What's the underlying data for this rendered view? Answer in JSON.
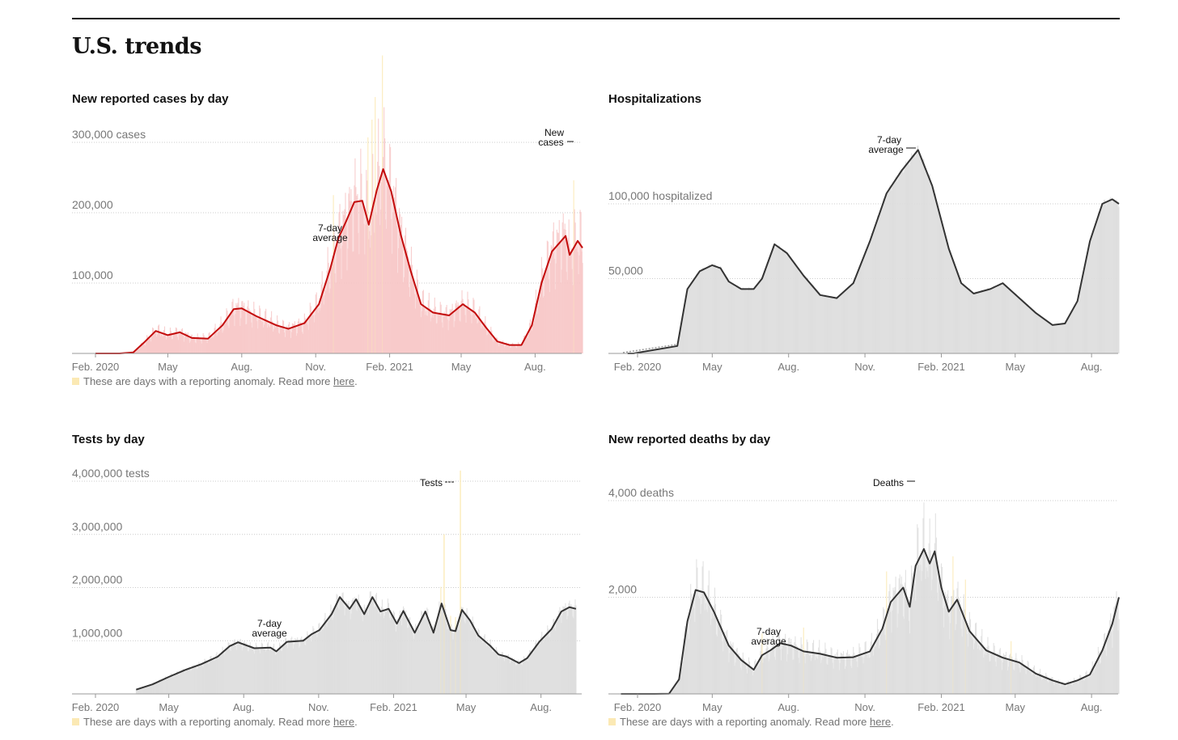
{
  "section": {
    "title": "U.S. trends"
  },
  "note": {
    "text": "These are days with a reporting anomaly. Read more ",
    "link": "here",
    "end": "."
  },
  "colors": {
    "cases_line": "#c30b0b",
    "cases_fill": "#f7c7c7",
    "gray_line": "#333333",
    "gray_fill": "#dddddd",
    "anomaly": "#fbe9b4",
    "grid": "#cccccc"
  },
  "chart_data": [
    {
      "id": "cases",
      "type": "area",
      "title": "New reported cases by day",
      "unit_label": "cases",
      "ylim": [
        0,
        300000
      ],
      "y_ticks": [
        {
          "value": 300000,
          "label": "300,000 cases"
        },
        {
          "value": 200000,
          "label": "200,000"
        },
        {
          "value": 100000,
          "label": "100,000"
        }
      ],
      "x_ticks": [
        "Feb. 2020",
        "May",
        "Aug.",
        "Nov.",
        "Feb. 2021",
        "May",
        "Aug."
      ],
      "x_tick_days": [
        0,
        90,
        182,
        274,
        366,
        455,
        547
      ],
      "days_total": 606,
      "series_line_label": "7-day average",
      "series_bar_label": "New cases",
      "bar_noise": 0.4,
      "has_anomaly_note": true,
      "avg_points": [
        [
          -15,
          0
        ],
        [
          0,
          0
        ],
        [
          30,
          0
        ],
        [
          47,
          1500
        ],
        [
          60,
          15000
        ],
        [
          75,
          32000
        ],
        [
          90,
          26000
        ],
        [
          105,
          30000
        ],
        [
          120,
          22000
        ],
        [
          140,
          21000
        ],
        [
          158,
          40000
        ],
        [
          172,
          63000
        ],
        [
          182,
          64000
        ],
        [
          200,
          53000
        ],
        [
          225,
          40000
        ],
        [
          240,
          35000
        ],
        [
          260,
          43000
        ],
        [
          278,
          70000
        ],
        [
          292,
          120000
        ],
        [
          302,
          163000
        ],
        [
          312,
          188000
        ],
        [
          322,
          215000
        ],
        [
          332,
          217000
        ],
        [
          340,
          183000
        ],
        [
          350,
          232000
        ],
        [
          358,
          262000
        ],
        [
          368,
          230000
        ],
        [
          380,
          168000
        ],
        [
          392,
          118000
        ],
        [
          405,
          70000
        ],
        [
          420,
          58000
        ],
        [
          440,
          54000
        ],
        [
          457,
          70000
        ],
        [
          472,
          58000
        ],
        [
          485,
          38000
        ],
        [
          500,
          17000
        ],
        [
          515,
          12000
        ],
        [
          530,
          12000
        ],
        [
          543,
          40000
        ],
        [
          555,
          100000
        ],
        [
          568,
          145000
        ],
        [
          585,
          167000
        ],
        [
          590,
          140000
        ],
        [
          596,
          152000
        ],
        [
          600,
          160000
        ],
        [
          606,
          150000
        ]
      ],
      "anomaly_days": [
        296,
        339,
        344,
        348,
        357,
        595
      ]
    },
    {
      "id": "hosp",
      "type": "area",
      "title": "Hospitalizations",
      "unit_label": "hospitalized",
      "ylim": [
        0,
        135000
      ],
      "y_ticks": [
        {
          "value": 100000,
          "label": "100,000 hospitalized"
        },
        {
          "value": 50000,
          "label": "50,000"
        }
      ],
      "x_ticks": [
        "Feb. 2020",
        "May",
        "Aug.",
        "Nov.",
        "Feb. 2021",
        "May",
        "Aug."
      ],
      "x_tick_days": [
        0,
        90,
        182,
        274,
        366,
        455,
        547
      ],
      "days_total": 580,
      "series_line_label": "7-day average",
      "bar_noise": 0.03,
      "has_anomaly_note": false,
      "avg_points": [
        [
          -12,
          0
        ],
        [
          -5,
          0
        ],
        [
          48,
          5000
        ],
        [
          60,
          43000
        ],
        [
          75,
          55000
        ],
        [
          90,
          59000
        ],
        [
          100,
          57000
        ],
        [
          110,
          48000
        ],
        [
          125,
          43000
        ],
        [
          140,
          43000
        ],
        [
          150,
          50000
        ],
        [
          165,
          73000
        ],
        [
          180,
          67000
        ],
        [
          200,
          52000
        ],
        [
          220,
          39000
        ],
        [
          240,
          37000
        ],
        [
          260,
          47000
        ],
        [
          280,
          75000
        ],
        [
          300,
          107000
        ],
        [
          318,
          122000
        ],
        [
          338,
          136000
        ],
        [
          355,
          112000
        ],
        [
          375,
          70000
        ],
        [
          390,
          47000
        ],
        [
          405,
          40000
        ],
        [
          425,
          43000
        ],
        [
          440,
          47000
        ],
        [
          460,
          37000
        ],
        [
          480,
          27000
        ],
        [
          500,
          19000
        ],
        [
          515,
          20000
        ],
        [
          530,
          35000
        ],
        [
          545,
          75000
        ],
        [
          560,
          100000
        ],
        [
          572,
          103000
        ],
        [
          580,
          100000
        ]
      ],
      "anomaly_days": []
    },
    {
      "id": "tests",
      "type": "area",
      "title": "Tests by day",
      "unit_label": "tests",
      "ylim": [
        0,
        4000000
      ],
      "y_ticks": [
        {
          "value": 4000000,
          "label": "4,000,000 tests"
        },
        {
          "value": 3000000,
          "label": "3,000,000"
        },
        {
          "value": 2000000,
          "label": "2,000,000"
        },
        {
          "value": 1000000,
          "label": "1,000,000"
        }
      ],
      "x_ticks": [
        "Feb. 2020",
        "May",
        "Aug.",
        "Nov.",
        "Feb. 2021",
        "May",
        "Aug."
      ],
      "x_tick_days": [
        0,
        90,
        182,
        274,
        366,
        455,
        547
      ],
      "days_total": 598,
      "series_line_label": "7-day average",
      "series_bar_label": "Tests",
      "bar_noise": 0.14,
      "has_anomaly_note": true,
      "avg_points": [
        [
          50,
          80000
        ],
        [
          70,
          180000
        ],
        [
          90,
          320000
        ],
        [
          110,
          450000
        ],
        [
          130,
          560000
        ],
        [
          150,
          700000
        ],
        [
          165,
          900000
        ],
        [
          175,
          970000
        ],
        [
          195,
          860000
        ],
        [
          215,
          870000
        ],
        [
          222,
          800000
        ],
        [
          235,
          980000
        ],
        [
          255,
          1000000
        ],
        [
          265,
          1120000
        ],
        [
          275,
          1200000
        ],
        [
          290,
          1500000
        ],
        [
          300,
          1820000
        ],
        [
          312,
          1600000
        ],
        [
          320,
          1780000
        ],
        [
          330,
          1500000
        ],
        [
          340,
          1820000
        ],
        [
          350,
          1550000
        ],
        [
          360,
          1600000
        ],
        [
          370,
          1320000
        ],
        [
          378,
          1560000
        ],
        [
          392,
          1150000
        ],
        [
          405,
          1550000
        ],
        [
          415,
          1150000
        ],
        [
          425,
          1700000
        ],
        [
          436,
          1200000
        ],
        [
          442,
          1180000
        ],
        [
          450,
          1580000
        ],
        [
          460,
          1380000
        ],
        [
          470,
          1100000
        ],
        [
          485,
          900000
        ],
        [
          495,
          740000
        ],
        [
          505,
          700000
        ],
        [
          520,
          580000
        ],
        [
          530,
          670000
        ],
        [
          545,
          980000
        ],
        [
          560,
          1220000
        ],
        [
          572,
          1550000
        ],
        [
          582,
          1630000
        ],
        [
          590,
          1600000
        ]
      ],
      "anomaly_days": [
        424,
        436,
        442
      ],
      "spike_days": [
        [
          428,
          3000000
        ],
        [
          448,
          4200000
        ]
      ]
    },
    {
      "id": "deaths",
      "type": "area",
      "title": "New reported deaths by day",
      "unit_label": "deaths",
      "ylim": [
        0,
        4000
      ],
      "y_ticks": [
        {
          "value": 4000,
          "label": "4,000 deaths"
        },
        {
          "value": 2000,
          "label": "2,000"
        }
      ],
      "x_ticks": [
        "Feb. 2020",
        "May",
        "Aug.",
        "Nov.",
        "Feb. 2021",
        "May",
        "Aug."
      ],
      "x_tick_days": [
        0,
        90,
        182,
        274,
        366,
        455,
        547
      ],
      "days_total": 580,
      "series_line_label": "7-day average",
      "series_bar_label": "Deaths",
      "bar_noise": 0.35,
      "has_anomaly_note": true,
      "avg_points": [
        [
          -20,
          0
        ],
        [
          20,
          0
        ],
        [
          38,
          5
        ],
        [
          50,
          300
        ],
        [
          60,
          1500
        ],
        [
          70,
          2150
        ],
        [
          80,
          2100
        ],
        [
          92,
          1700
        ],
        [
          110,
          1000
        ],
        [
          125,
          700
        ],
        [
          140,
          500
        ],
        [
          150,
          800
        ],
        [
          160,
          900
        ],
        [
          172,
          1050
        ],
        [
          185,
          1000
        ],
        [
          200,
          880
        ],
        [
          220,
          830
        ],
        [
          240,
          750
        ],
        [
          260,
          760
        ],
        [
          280,
          880
        ],
        [
          295,
          1350
        ],
        [
          305,
          1900
        ],
        [
          320,
          2200
        ],
        [
          328,
          1800
        ],
        [
          335,
          2650
        ],
        [
          345,
          3000
        ],
        [
          352,
          2700
        ],
        [
          358,
          2950
        ],
        [
          366,
          2200
        ],
        [
          375,
          1700
        ],
        [
          385,
          1950
        ],
        [
          400,
          1300
        ],
        [
          420,
          900
        ],
        [
          440,
          750
        ],
        [
          460,
          650
        ],
        [
          480,
          420
        ],
        [
          500,
          280
        ],
        [
          515,
          200
        ],
        [
          530,
          280
        ],
        [
          545,
          400
        ],
        [
          560,
          900
        ],
        [
          572,
          1450
        ],
        [
          580,
          2000
        ]
      ],
      "anomaly_days": [
        150,
        200,
        300,
        380,
        395,
        450
      ]
    }
  ]
}
